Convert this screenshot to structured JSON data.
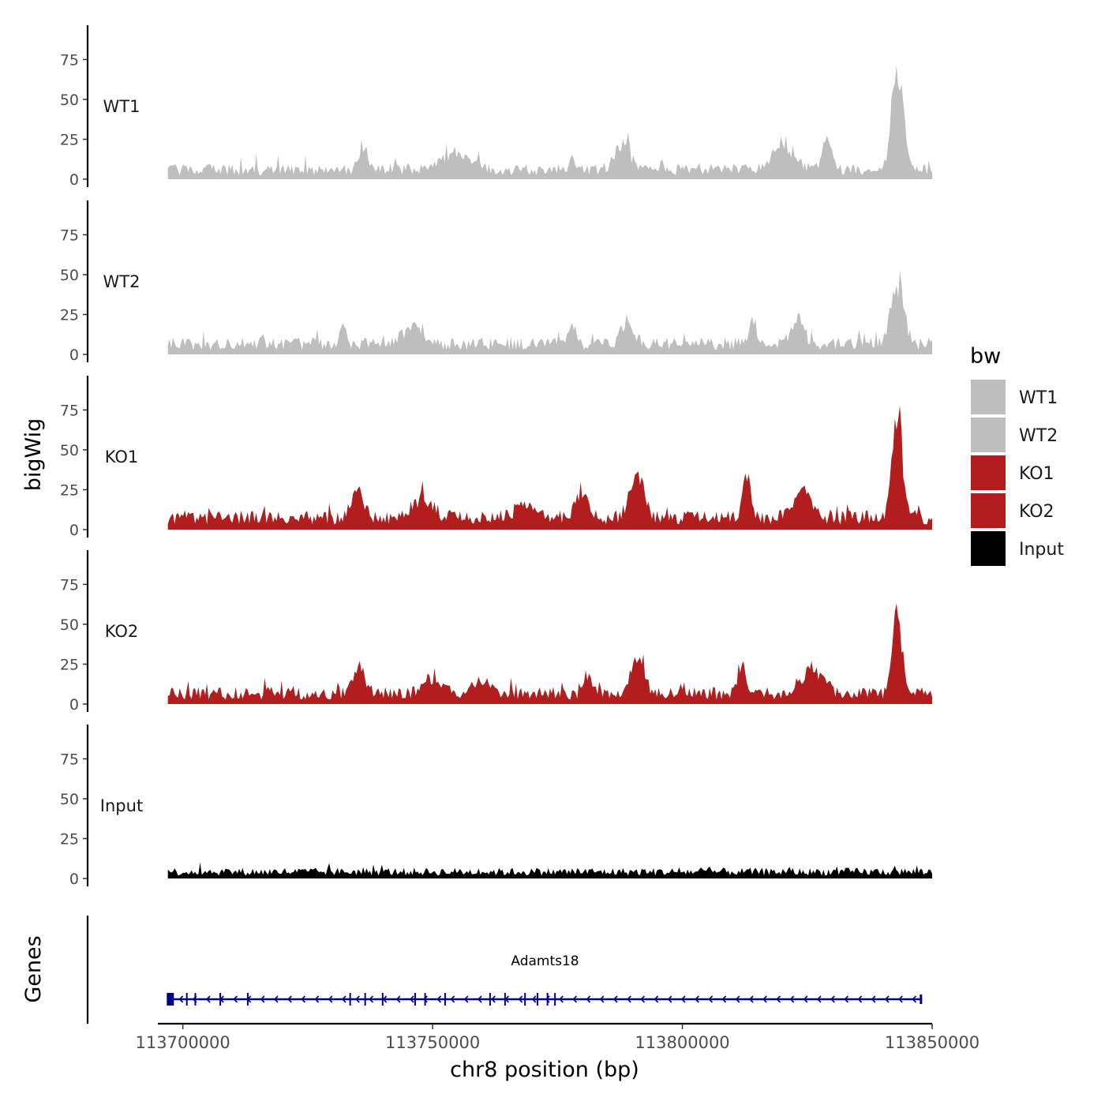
{
  "chart_data": {
    "type": "area",
    "title": "",
    "ylabel": "bigWig",
    "xlabel": "chr8 position (bp)",
    "xlim": [
      113695000,
      113850000
    ],
    "ylim": [
      0,
      95
    ],
    "yticks": [
      0,
      25,
      50,
      75
    ],
    "yticklabels": [
      "0",
      "25",
      "50",
      "75"
    ],
    "xticks": [
      113700000,
      113750000,
      113800000,
      113850000
    ],
    "xticklabels": [
      "113700000",
      "113750000",
      "113800000",
      "113850000"
    ],
    "tracks": [
      {
        "name": "WT1",
        "color": "#bebebe",
        "baseline": 7,
        "peaks": [
          [
            113736000,
            17,
            800
          ],
          [
            113755000,
            12,
            2500
          ],
          [
            113778000,
            11,
            600
          ],
          [
            113788000,
            18,
            1500
          ],
          [
            113820000,
            17,
            2200
          ],
          [
            113829000,
            22,
            900
          ],
          [
            113843000,
            67,
            1100
          ]
        ]
      },
      {
        "name": "WT2",
        "color": "#bebebe",
        "baseline": 8,
        "peaks": [
          [
            113732000,
            12,
            600
          ],
          [
            113746000,
            10,
            2000
          ],
          [
            113778000,
            12,
            800
          ],
          [
            113789000,
            14,
            1200
          ],
          [
            113814000,
            15,
            600
          ],
          [
            113823000,
            15,
            1300
          ],
          [
            113843000,
            42,
            1200
          ]
        ]
      },
      {
        "name": "KO1",
        "color": "#b21e1e",
        "baseline": 9,
        "peaks": [
          [
            113735000,
            18,
            1200
          ],
          [
            113748000,
            12,
            2000
          ],
          [
            113768000,
            9,
            1500
          ],
          [
            113780000,
            18,
            1200
          ],
          [
            113791000,
            28,
            1300
          ],
          [
            113813000,
            25,
            800
          ],
          [
            113824000,
            22,
            1500
          ],
          [
            113843000,
            65,
            1000
          ]
        ]
      },
      {
        "name": "KO2",
        "color": "#b21e1e",
        "baseline": 8,
        "peaks": [
          [
            113735000,
            17,
            1200
          ],
          [
            113750000,
            11,
            2000
          ],
          [
            113760000,
            10,
            1500
          ],
          [
            113781000,
            14,
            700
          ],
          [
            113791000,
            22,
            1300
          ],
          [
            113812000,
            20,
            800
          ],
          [
            113826000,
            18,
            2200
          ],
          [
            113843000,
            60,
            900
          ]
        ]
      },
      {
        "name": "Input",
        "color": "#000000",
        "baseline": 5,
        "peaks": []
      }
    ],
    "legend": {
      "title": "bw",
      "position": "right",
      "entries": [
        {
          "label": "WT1",
          "color": "#bebebe"
        },
        {
          "label": "WT2",
          "color": "#bebebe"
        },
        {
          "label": "KO1",
          "color": "#b21e1e"
        },
        {
          "label": "KO2",
          "color": "#b21e1e"
        },
        {
          "label": "Input",
          "color": "#000000"
        }
      ]
    },
    "genes": {
      "track_label": "Genes",
      "items": [
        {
          "name": "Adamts18",
          "start": 113697000,
          "end": 113848000,
          "strand": "-",
          "color": "#00008b",
          "exons": [
            113697500,
            113700800,
            113702500,
            113707500,
            113713000,
            113733500,
            113736500,
            113740000,
            113746500,
            113748500,
            113752500,
            113761500,
            113764500,
            113768500,
            113771000,
            113773000,
            113774500
          ]
        }
      ]
    }
  }
}
